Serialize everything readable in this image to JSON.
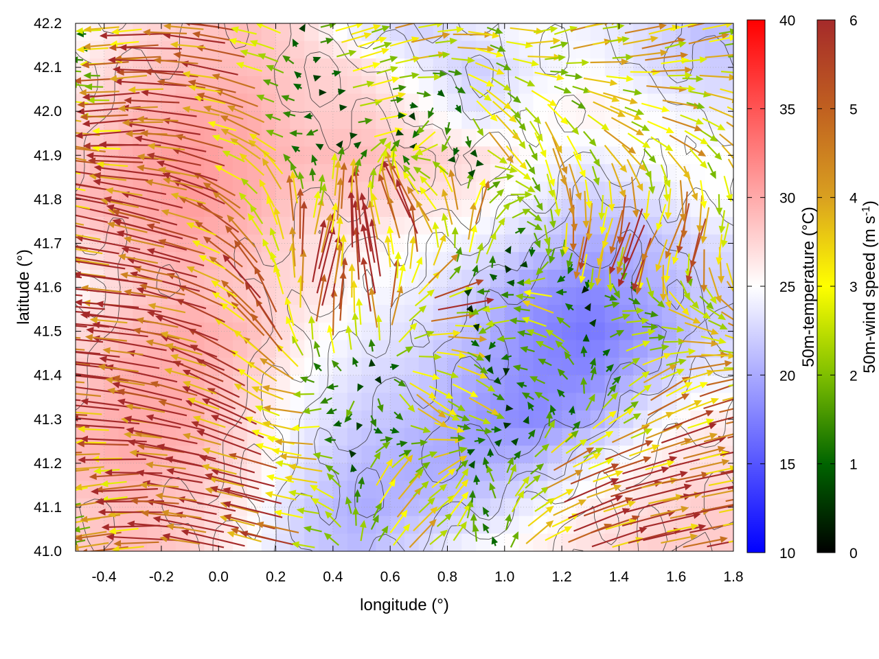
{
  "chart_data": {
    "type": "heatmap",
    "subtype": "vector-field-over-temperature-map",
    "title": "",
    "xlabel": "longitude (°)",
    "ylabel": "latitude (°)",
    "xlim": [
      -0.5,
      1.8
    ],
    "ylim": [
      41.0,
      42.2
    ],
    "xticks": [
      -0.4,
      -0.2,
      0.0,
      0.2,
      0.4,
      0.6,
      0.8,
      1.0,
      1.2,
      1.4,
      1.6,
      1.8
    ],
    "xtick_labels": [
      "-0.4",
      "-0.2",
      "0.0",
      "0.2",
      "0.4",
      "0.6",
      "0.8",
      "1.0",
      "1.2",
      "1.4",
      "1.6",
      "1.8"
    ],
    "yticks": [
      41.0,
      41.1,
      41.2,
      41.3,
      41.4,
      41.5,
      41.6,
      41.7,
      41.8,
      41.9,
      42.0,
      42.1,
      42.2
    ],
    "ytick_labels": [
      "41.0",
      "41.1",
      "41.2",
      "41.3",
      "41.4",
      "41.5",
      "41.6",
      "41.7",
      "41.8",
      "41.9",
      "42.0",
      "42.1",
      "42.2"
    ],
    "grid": true,
    "colorbars": [
      {
        "name": "temperature",
        "label": "50m-temperature (°C)",
        "range": [
          10,
          40
        ],
        "ticks": [
          10,
          15,
          20,
          25,
          30,
          35,
          40
        ],
        "tick_labels": [
          "10",
          "15",
          "20",
          "25",
          "30",
          "35",
          "40"
        ],
        "colors": [
          "#0000ff",
          "#ffffff",
          "#ff0000"
        ]
      },
      {
        "name": "wind_speed",
        "label_main": "50m-wind speed (m s",
        "label_sup": "-1",
        "label_end": ")",
        "range": [
          0,
          6
        ],
        "ticks": [
          0,
          1,
          2,
          3,
          4,
          5,
          6
        ],
        "tick_labels": [
          "0",
          "1",
          "2",
          "3",
          "4",
          "5",
          "6"
        ],
        "colors": [
          "#000000",
          "#006400",
          "#7fbf00",
          "#ffff00",
          "#d9a020",
          "#c06020",
          "#a52a2a"
        ]
      }
    ],
    "temperature_field": {
      "lon": [
        -0.5,
        -0.3,
        -0.1,
        0.1,
        0.3,
        0.5,
        0.7,
        0.9,
        1.1,
        1.3,
        1.5,
        1.7
      ],
      "lat": [
        42.2,
        42.1,
        42.0,
        41.9,
        41.8,
        41.7,
        41.6,
        41.5,
        41.4,
        41.3,
        41.2,
        41.1,
        41.0
      ],
      "values_C": [
        [
          25,
          27,
          28,
          29,
          27,
          23,
          22,
          24,
          25,
          24,
          23,
          21
        ],
        [
          26,
          28,
          29,
          29,
          28,
          27,
          24,
          22,
          24,
          25,
          23,
          22
        ],
        [
          27,
          29,
          30,
          30,
          28,
          28,
          26,
          23,
          25,
          26,
          25,
          24
        ],
        [
          28,
          30,
          31,
          30,
          29,
          29,
          28,
          27,
          25,
          24,
          25,
          25
        ],
        [
          29,
          30,
          31,
          30,
          28,
          28,
          27,
          26,
          24,
          22,
          23,
          25
        ],
        [
          27,
          29,
          30,
          29,
          27,
          26,
          25,
          24,
          22,
          20,
          21,
          23
        ],
        [
          25,
          28,
          29,
          28,
          27,
          25,
          24,
          22,
          19,
          18,
          20,
          22
        ],
        [
          27,
          29,
          30,
          29,
          26,
          24,
          23,
          21,
          18,
          17,
          19,
          22
        ],
        [
          28,
          30,
          30,
          28,
          25,
          23,
          22,
          20,
          18,
          18,
          21,
          24
        ],
        [
          29,
          30,
          30,
          27,
          24,
          22,
          21,
          19,
          18,
          20,
          24,
          26
        ],
        [
          29,
          30,
          29,
          27,
          23,
          21,
          20,
          20,
          21,
          24,
          26,
          27
        ],
        [
          28,
          29,
          28,
          26,
          22,
          20,
          21,
          22,
          24,
          26,
          27,
          28
        ],
        [
          28,
          29,
          28,
          25,
          22,
          21,
          23,
          25,
          26,
          27,
          28,
          28
        ]
      ]
    },
    "wind_field": {
      "lon": [
        -0.45,
        -0.25,
        -0.05,
        0.15,
        0.35,
        0.55,
        0.75,
        0.95,
        1.15,
        1.35,
        1.55,
        1.75
      ],
      "lat": [
        42.15,
        41.95,
        41.75,
        41.55,
        41.35,
        41.15
      ],
      "u_ms": [
        [
          -1.5,
          -5.0,
          -5.5,
          -4.0,
          2.0,
          3.0,
          3.5,
          2.5,
          3.0,
          3.5,
          3.5,
          3.0
        ],
        [
          -3.0,
          -5.5,
          -6.0,
          -3.0,
          -1.0,
          2.5,
          -2.0,
          2.0,
          1.0,
          2.5,
          3.0,
          2.5
        ],
        [
          -5.0,
          -6.0,
          -5.0,
          -2.0,
          1.0,
          -1.0,
          -3.0,
          2.5,
          0.5,
          -1.5,
          -2.5,
          -1.0
        ],
        [
          -6.0,
          -6.0,
          -5.5,
          -3.0,
          1.5,
          -1.0,
          5.0,
          -2.0,
          -3.0,
          1.5,
          2.5,
          3.0
        ],
        [
          -6.0,
          -6.0,
          -5.0,
          -4.0,
          -2.5,
          0.5,
          3.0,
          2.0,
          -2.0,
          1.0,
          3.5,
          4.0
        ],
        [
          -2.5,
          -5.0,
          -6.0,
          -5.5,
          -3.0,
          1.5,
          2.5,
          -1.0,
          4.0,
          5.0,
          5.0,
          5.0
        ]
      ],
      "v_ms": [
        [
          0.0,
          -0.5,
          0.5,
          1.0,
          0.5,
          1.0,
          0.5,
          -1.0,
          1.0,
          0.5,
          1.0,
          0.5
        ],
        [
          0.5,
          -0.5,
          1.0,
          1.5,
          -0.5,
          0.5,
          -1.5,
          -2.5,
          -3.0,
          -2.0,
          -1.5,
          -2.0
        ],
        [
          1.0,
          1.5,
          1.5,
          3.0,
          4.0,
          5.0,
          4.5,
          3.5,
          -3.0,
          -5.0,
          -5.0,
          -4.0
        ],
        [
          0.5,
          0.5,
          1.5,
          3.5,
          5.5,
          5.5,
          1.0,
          -1.0,
          1.0,
          0.5,
          -1.0,
          -2.0
        ],
        [
          0.5,
          1.0,
          1.5,
          2.5,
          -0.5,
          -2.0,
          -2.0,
          -1.0,
          1.0,
          1.5,
          2.0,
          1.0
        ],
        [
          -0.5,
          -0.5,
          1.0,
          1.5,
          0.5,
          2.5,
          2.0,
          1.5,
          2.0,
          1.5,
          1.0,
          1.0
        ]
      ]
    },
    "contour_lines": true
  }
}
